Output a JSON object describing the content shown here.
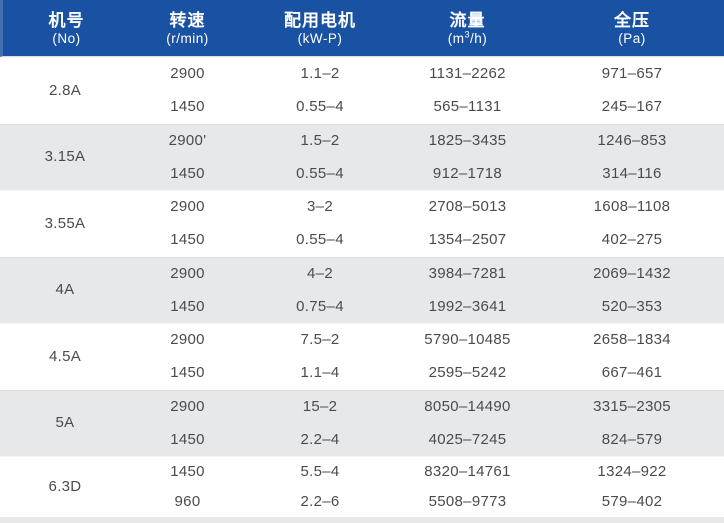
{
  "table": {
    "title": "fan-specification-table",
    "colors": {
      "header_bg": "#1a52a3",
      "header_edge": "#446fb0",
      "header_text": "#ffffff",
      "row_bg": "#ffffff",
      "row_alt_bg": "#e6e8ea",
      "body_text": "#4b4b4d"
    },
    "header": {
      "columns": [
        {
          "zh": "机号",
          "en": "(No)"
        },
        {
          "zh": "转速",
          "en": "(r/min)"
        },
        {
          "zh": "配用电机",
          "en": "(kW-P)"
        },
        {
          "zh": "流量",
          "unit_pre": "(m",
          "unit_sup": "3",
          "unit_post": "/h)"
        },
        {
          "zh": "全压",
          "en": "(Pa)"
        }
      ]
    },
    "blocks": [
      {
        "model": "2.8A",
        "shade": "white",
        "rows": [
          [
            "2900",
            "1.1–2",
            "1131–2262",
            "971–657"
          ],
          [
            "1450",
            "0.55–4",
            "565–1131",
            "245–167"
          ]
        ]
      },
      {
        "model": "3.15A",
        "shade": "gray",
        "rows": [
          [
            "2900'",
            "1.5–2",
            "1825–3435",
            "1246–853"
          ],
          [
            "1450",
            "0.55–4",
            "912–1718",
            "314–116"
          ]
        ]
      },
      {
        "model": "3.55A",
        "shade": "white",
        "rows": [
          [
            "2900",
            "3–2",
            "2708–5013",
            "1608–1108"
          ],
          [
            "1450",
            "0.55–4",
            "1354–2507",
            "402–275"
          ]
        ]
      },
      {
        "model": "4A",
        "shade": "gray",
        "rows": [
          [
            "2900",
            "4–2",
            "3984–7281",
            "2069–1432"
          ],
          [
            "1450",
            "0.75–4",
            "1992–3641",
            "520–353"
          ]
        ]
      },
      {
        "model": "4.5A",
        "shade": "white",
        "rows": [
          [
            "2900",
            "7.5–2",
            "5790–10485",
            "2658–1834"
          ],
          [
            "1450",
            "1.1–4",
            "2595–5242",
            "667–461"
          ]
        ]
      },
      {
        "model": "5A",
        "shade": "gray",
        "rows": [
          [
            "2900",
            "15–2",
            "8050–14490",
            "3315–2305"
          ],
          [
            "1450",
            "2.2–4",
            "4025–7245",
            "824–579"
          ]
        ]
      },
      {
        "model": "6.3D",
        "shade": "white",
        "rows": [
          [
            "1450",
            "5.5–4",
            "8320–14761",
            "1324–922"
          ],
          [
            "960",
            "2.2–6",
            "5508–9773",
            "579–402"
          ]
        ]
      }
    ]
  }
}
